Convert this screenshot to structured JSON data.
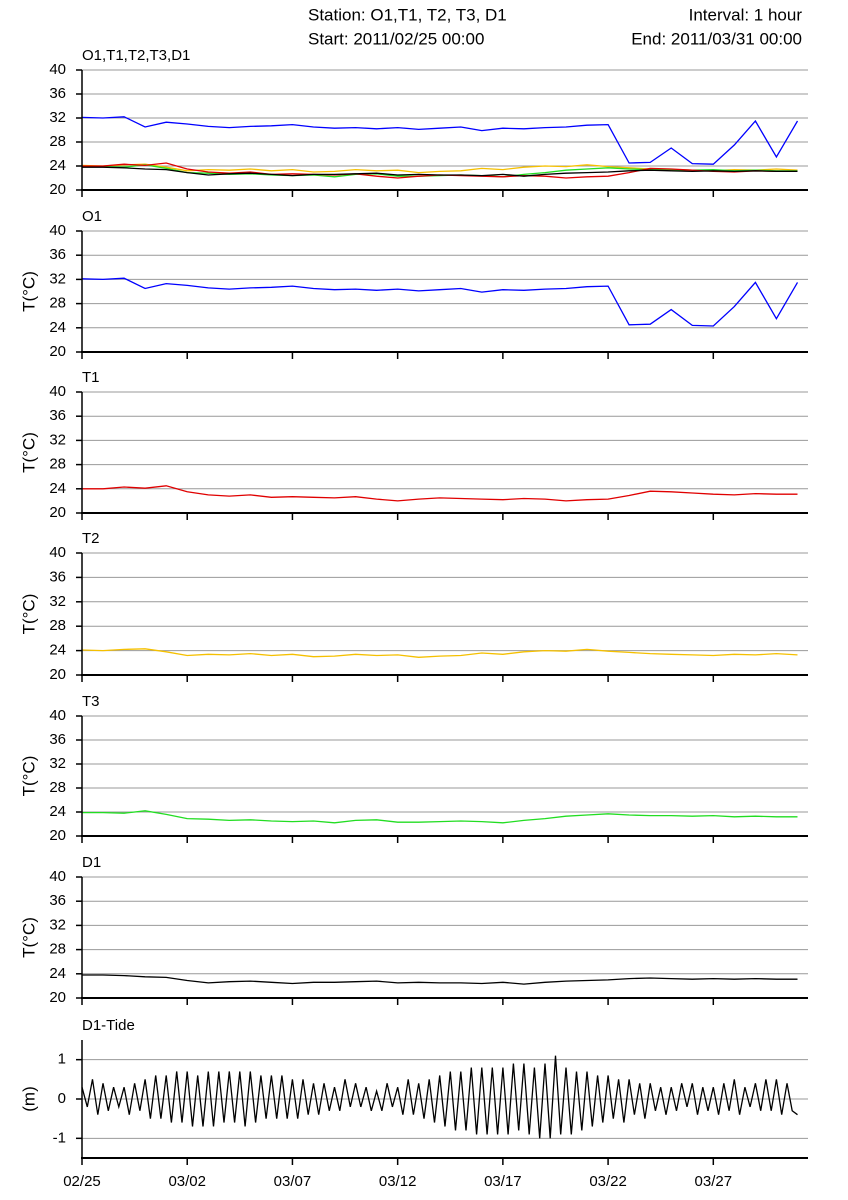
{
  "header": {
    "station": "Station: O1,T1, T2, T3, D1",
    "start": "Start: 2011/02/25 00:00",
    "interval": "Interval: 1 hour",
    "end": "End: 2011/03/31 00:00"
  },
  "chart_data": [
    {
      "type": "line",
      "title": "O1,T1,T2,T3,D1",
      "grid": true,
      "xlim": [
        0,
        34.5
      ],
      "xticks": [
        0,
        5,
        10,
        15,
        20,
        25,
        30
      ],
      "ylim": [
        20,
        40
      ],
      "yticks": [
        20,
        24,
        28,
        32,
        36,
        40
      ],
      "x": [
        0,
        1,
        2,
        3,
        4,
        5,
        6,
        7,
        8,
        9,
        10,
        11,
        12,
        13,
        14,
        15,
        16,
        17,
        18,
        19,
        20,
        21,
        22,
        23,
        24,
        25,
        26,
        27,
        28,
        29,
        30,
        31,
        32,
        33,
        34
      ],
      "series": [
        {
          "color": "#0000ff",
          "values": [
            32.1,
            32.0,
            32.2,
            30.5,
            31.3,
            31.0,
            30.6,
            30.4,
            30.6,
            30.7,
            30.9,
            30.5,
            30.3,
            30.4,
            30.2,
            30.4,
            30.1,
            30.3,
            30.5,
            29.9,
            30.3,
            30.2,
            30.4,
            30.5,
            30.8,
            30.9,
            24.5,
            24.6,
            27.0,
            24.4,
            24.3,
            27.5,
            31.5,
            25.5,
            31.5
          ]
        },
        {
          "color": "#f5c000",
          "values": [
            24.1,
            24.0,
            24.2,
            24.3,
            23.8,
            23.2,
            23.4,
            23.3,
            23.5,
            23.2,
            23.4,
            23.0,
            23.1,
            23.4,
            23.2,
            23.3,
            22.9,
            23.1,
            23.2,
            23.6,
            23.4,
            23.8,
            24.0,
            23.9,
            24.2,
            23.9,
            23.7,
            23.5,
            23.4,
            23.3,
            23.2,
            23.4,
            23.3,
            23.5,
            23.3
          ]
        },
        {
          "color": "#22dd22",
          "values": [
            23.9,
            23.9,
            23.8,
            24.2,
            23.6,
            22.9,
            22.8,
            22.6,
            22.7,
            22.5,
            22.4,
            22.5,
            22.2,
            22.6,
            22.7,
            22.3,
            22.3,
            22.4,
            22.5,
            22.4,
            22.2,
            22.6,
            22.9,
            23.3,
            23.5,
            23.7,
            23.5,
            23.4,
            23.4,
            23.3,
            23.4,
            23.2,
            23.3,
            23.2,
            23.2
          ]
        },
        {
          "color": "#e00000",
          "values": [
            24.0,
            24.0,
            24.3,
            24.1,
            24.5,
            23.5,
            23.0,
            22.8,
            23.0,
            22.6,
            22.7,
            22.6,
            22.5,
            22.7,
            22.3,
            22.0,
            22.3,
            22.5,
            22.4,
            22.3,
            22.2,
            22.4,
            22.3,
            22.0,
            22.2,
            22.3,
            22.9,
            23.6,
            23.5,
            23.3,
            23.1,
            23.0,
            23.2,
            23.1,
            23.1
          ]
        },
        {
          "color": "#000000",
          "values": [
            23.8,
            23.8,
            23.7,
            23.5,
            23.4,
            22.9,
            22.5,
            22.7,
            22.8,
            22.6,
            22.4,
            22.6,
            22.6,
            22.7,
            22.8,
            22.5,
            22.6,
            22.5,
            22.5,
            22.4,
            22.6,
            22.3,
            22.6,
            22.8,
            22.9,
            23.0,
            23.2,
            23.3,
            23.2,
            23.1,
            23.2,
            23.1,
            23.2,
            23.1,
            23.1
          ]
        }
      ]
    },
    {
      "type": "line",
      "title": "O1",
      "ylabel": "T(°C)",
      "grid": true,
      "xlim": [
        0,
        34.5
      ],
      "xticks": [
        0,
        5,
        10,
        15,
        20,
        25,
        30
      ],
      "ylim": [
        20,
        40
      ],
      "yticks": [
        20,
        24,
        28,
        32,
        36,
        40
      ],
      "x": [
        0,
        1,
        2,
        3,
        4,
        5,
        6,
        7,
        8,
        9,
        10,
        11,
        12,
        13,
        14,
        15,
        16,
        17,
        18,
        19,
        20,
        21,
        22,
        23,
        24,
        25,
        26,
        27,
        28,
        29,
        30,
        31,
        32,
        33,
        34
      ],
      "series": [
        {
          "color": "#0000ff",
          "values": [
            32.1,
            32.0,
            32.2,
            30.5,
            31.3,
            31.0,
            30.6,
            30.4,
            30.6,
            30.7,
            30.9,
            30.5,
            30.3,
            30.4,
            30.2,
            30.4,
            30.1,
            30.3,
            30.5,
            29.9,
            30.3,
            30.2,
            30.4,
            30.5,
            30.8,
            30.9,
            24.5,
            24.6,
            27.0,
            24.4,
            24.3,
            27.5,
            31.5,
            25.5,
            31.5
          ]
        }
      ]
    },
    {
      "type": "line",
      "title": "T1",
      "ylabel": "T(°C)",
      "grid": true,
      "xlim": [
        0,
        34.5
      ],
      "xticks": [
        0,
        5,
        10,
        15,
        20,
        25,
        30
      ],
      "ylim": [
        20,
        40
      ],
      "yticks": [
        20,
        24,
        28,
        32,
        36,
        40
      ],
      "x": [
        0,
        1,
        2,
        3,
        4,
        5,
        6,
        7,
        8,
        9,
        10,
        11,
        12,
        13,
        14,
        15,
        16,
        17,
        18,
        19,
        20,
        21,
        22,
        23,
        24,
        25,
        26,
        27,
        28,
        29,
        30,
        31,
        32,
        33,
        34
      ],
      "series": [
        {
          "color": "#e00000",
          "values": [
            24.0,
            24.0,
            24.3,
            24.1,
            24.5,
            23.5,
            23.0,
            22.8,
            23.0,
            22.6,
            22.7,
            22.6,
            22.5,
            22.7,
            22.3,
            22.0,
            22.3,
            22.5,
            22.4,
            22.3,
            22.2,
            22.4,
            22.3,
            22.0,
            22.2,
            22.3,
            22.9,
            23.6,
            23.5,
            23.3,
            23.1,
            23.0,
            23.2,
            23.1,
            23.1
          ]
        }
      ]
    },
    {
      "type": "line",
      "title": "T2",
      "ylabel": "T(°C)",
      "grid": true,
      "xlim": [
        0,
        34.5
      ],
      "xticks": [
        0,
        5,
        10,
        15,
        20,
        25,
        30
      ],
      "ylim": [
        20,
        40
      ],
      "yticks": [
        20,
        24,
        28,
        32,
        36,
        40
      ],
      "x": [
        0,
        1,
        2,
        3,
        4,
        5,
        6,
        7,
        8,
        9,
        10,
        11,
        12,
        13,
        14,
        15,
        16,
        17,
        18,
        19,
        20,
        21,
        22,
        23,
        24,
        25,
        26,
        27,
        28,
        29,
        30,
        31,
        32,
        33,
        34
      ],
      "series": [
        {
          "color": "#f5c000",
          "values": [
            24.1,
            24.0,
            24.2,
            24.3,
            23.8,
            23.2,
            23.4,
            23.3,
            23.5,
            23.2,
            23.4,
            23.0,
            23.1,
            23.4,
            23.2,
            23.3,
            22.9,
            23.1,
            23.2,
            23.6,
            23.4,
            23.8,
            24.0,
            23.9,
            24.2,
            23.9,
            23.7,
            23.5,
            23.4,
            23.3,
            23.2,
            23.4,
            23.3,
            23.5,
            23.3
          ]
        }
      ]
    },
    {
      "type": "line",
      "title": "T3",
      "ylabel": "T(°C)",
      "grid": true,
      "xlim": [
        0,
        34.5
      ],
      "xticks": [
        0,
        5,
        10,
        15,
        20,
        25,
        30
      ],
      "ylim": [
        20,
        40
      ],
      "yticks": [
        20,
        24,
        28,
        32,
        36,
        40
      ],
      "x": [
        0,
        1,
        2,
        3,
        4,
        5,
        6,
        7,
        8,
        9,
        10,
        11,
        12,
        13,
        14,
        15,
        16,
        17,
        18,
        19,
        20,
        21,
        22,
        23,
        24,
        25,
        26,
        27,
        28,
        29,
        30,
        31,
        32,
        33,
        34
      ],
      "series": [
        {
          "color": "#22dd22",
          "values": [
            23.9,
            23.9,
            23.8,
            24.2,
            23.6,
            22.9,
            22.8,
            22.6,
            22.7,
            22.5,
            22.4,
            22.5,
            22.2,
            22.6,
            22.7,
            22.3,
            22.3,
            22.4,
            22.5,
            22.4,
            22.2,
            22.6,
            22.9,
            23.3,
            23.5,
            23.7,
            23.5,
            23.4,
            23.4,
            23.3,
            23.4,
            23.2,
            23.3,
            23.2,
            23.2
          ]
        }
      ]
    },
    {
      "type": "line",
      "title": "D1",
      "ylabel": "T(°C)",
      "grid": true,
      "xlim": [
        0,
        34.5
      ],
      "xticks": [
        0,
        5,
        10,
        15,
        20,
        25,
        30
      ],
      "ylim": [
        20,
        40
      ],
      "yticks": [
        20,
        24,
        28,
        32,
        36,
        40
      ],
      "x": [
        0,
        1,
        2,
        3,
        4,
        5,
        6,
        7,
        8,
        9,
        10,
        11,
        12,
        13,
        14,
        15,
        16,
        17,
        18,
        19,
        20,
        21,
        22,
        23,
        24,
        25,
        26,
        27,
        28,
        29,
        30,
        31,
        32,
        33,
        34
      ],
      "series": [
        {
          "color": "#000000",
          "values": [
            23.8,
            23.8,
            23.7,
            23.5,
            23.4,
            22.9,
            22.5,
            22.7,
            22.8,
            22.6,
            22.4,
            22.6,
            22.6,
            22.7,
            22.8,
            22.5,
            22.6,
            22.5,
            22.5,
            22.4,
            22.6,
            22.3,
            22.6,
            22.8,
            22.9,
            23.0,
            23.2,
            23.3,
            23.2,
            23.1,
            23.2,
            23.1,
            23.2,
            23.1,
            23.1
          ]
        }
      ]
    },
    {
      "type": "line",
      "title": "D1-Tide",
      "ylabel": "(m)",
      "grid": true,
      "xlim": [
        0,
        34.5
      ],
      "xticks": [
        {
          "value": 0,
          "label": "02/25"
        },
        {
          "value": 5,
          "label": "03/02"
        },
        {
          "value": 10,
          "label": "03/07"
        },
        {
          "value": 15,
          "label": "03/12"
        },
        {
          "value": 20,
          "label": "03/17"
        },
        {
          "value": 25,
          "label": "03/22"
        },
        {
          "value": 30,
          "label": "03/27"
        }
      ],
      "ylim": [
        -1.5,
        1.5
      ],
      "yticks": [
        -1,
        0,
        1
      ],
      "x": [
        0,
        0.25,
        0.5,
        0.75,
        1,
        1.25,
        1.5,
        1.75,
        2,
        2.25,
        2.5,
        2.75,
        3,
        3.25,
        3.5,
        3.75,
        4,
        4.25,
        4.5,
        4.75,
        5,
        5.25,
        5.5,
        5.75,
        6,
        6.25,
        6.5,
        6.75,
        7,
        7.25,
        7.5,
        7.75,
        8,
        8.25,
        8.5,
        8.75,
        9,
        9.25,
        9.5,
        9.75,
        10,
        10.25,
        10.5,
        10.75,
        11,
        11.25,
        11.5,
        11.75,
        12,
        12.25,
        12.5,
        12.75,
        13,
        13.25,
        13.5,
        13.75,
        14,
        14.25,
        14.5,
        14.75,
        15,
        15.25,
        15.5,
        15.75,
        16,
        16.25,
        16.5,
        16.75,
        17,
        17.25,
        17.5,
        17.75,
        18,
        18.25,
        18.5,
        18.75,
        19,
        19.25,
        19.5,
        19.75,
        20,
        20.25,
        20.5,
        20.75,
        21,
        21.25,
        21.5,
        21.75,
        22,
        22.25,
        22.5,
        22.75,
        23,
        23.25,
        23.5,
        23.75,
        24,
        24.25,
        24.5,
        24.75,
        25,
        25.25,
        25.5,
        25.75,
        26,
        26.25,
        26.5,
        26.75,
        27,
        27.25,
        27.5,
        27.75,
        28,
        28.25,
        28.5,
        28.75,
        29,
        29.25,
        29.5,
        29.75,
        30,
        30.25,
        30.5,
        30.75,
        31,
        31.25,
        31.5,
        31.75,
        32,
        32.25,
        32.5,
        32.75,
        33,
        33.25,
        33.5,
        33.75,
        34
      ],
      "series": [
        {
          "color": "#000000",
          "values": [
            0.3,
            -0.2,
            0.5,
            -0.4,
            0.4,
            -0.3,
            0.3,
            -0.2,
            0.3,
            -0.4,
            0.4,
            -0.3,
            0.5,
            -0.5,
            0.6,
            -0.5,
            0.6,
            -0.6,
            0.7,
            -0.6,
            0.7,
            -0.7,
            0.6,
            -0.7,
            0.7,
            -0.7,
            0.7,
            -0.6,
            0.7,
            -0.6,
            0.7,
            -0.7,
            0.7,
            -0.6,
            0.6,
            -0.5,
            0.6,
            -0.5,
            0.6,
            -0.5,
            0.5,
            -0.5,
            0.5,
            -0.4,
            0.4,
            -0.4,
            0.4,
            -0.3,
            0.3,
            -0.3,
            0.5,
            -0.2,
            0.4,
            -0.2,
            0.3,
            -0.3,
            0.2,
            -0.3,
            0.4,
            -0.2,
            0.3,
            -0.4,
            0.5,
            -0.4,
            0.4,
            -0.5,
            0.5,
            -0.6,
            0.6,
            -0.7,
            0.7,
            -0.8,
            0.7,
            -0.8,
            0.8,
            -0.9,
            0.8,
            -0.9,
            0.8,
            -0.9,
            0.8,
            -0.9,
            0.9,
            -0.8,
            0.9,
            -0.9,
            0.8,
            -1.0,
            0.9,
            -1.0,
            1.1,
            -0.9,
            0.8,
            -0.9,
            0.7,
            -0.8,
            0.7,
            -0.7,
            0.6,
            -0.6,
            0.6,
            -0.5,
            0.5,
            -0.6,
            0.5,
            -0.4,
            0.4,
            -0.5,
            0.4,
            -0.3,
            0.3,
            -0.4,
            0.3,
            -0.3,
            0.4,
            -0.2,
            0.4,
            -0.4,
            0.3,
            -0.3,
            0.3,
            -0.4,
            0.4,
            -0.3,
            0.5,
            -0.4,
            0.3,
            -0.2,
            0.4,
            -0.3,
            0.5,
            -0.3,
            0.5,
            -0.4,
            0.4,
            -0.3,
            -0.4
          ]
        }
      ]
    }
  ]
}
